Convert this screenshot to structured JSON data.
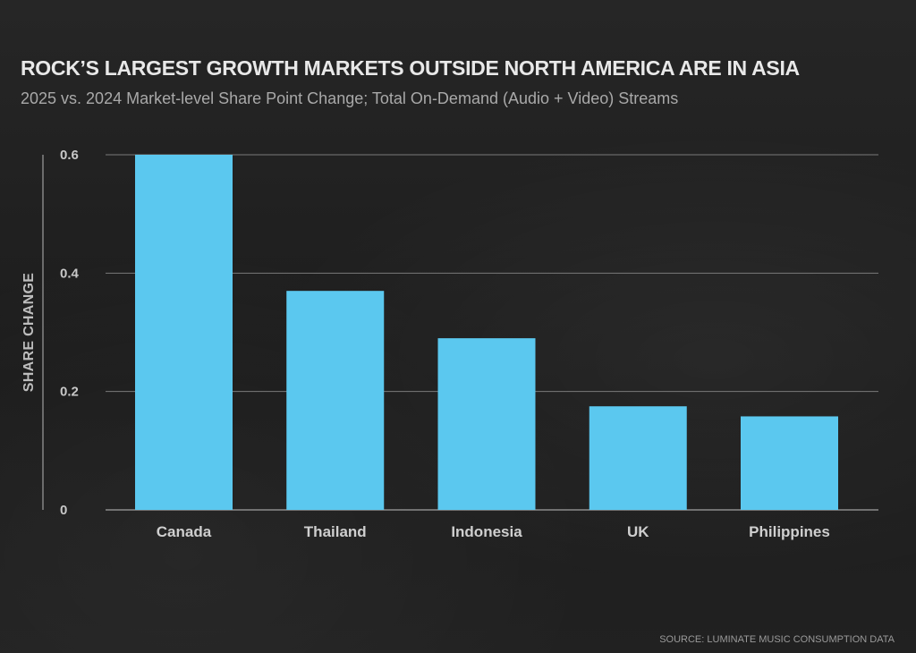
{
  "colors": {
    "bar": "#5bc8ef",
    "grid": "#7a7a7a",
    "axis": "#8c8c8c"
  },
  "source": "SOURCE: LUMINATE MUSIC CONSUMPTION DATA",
  "chart_data": {
    "type": "bar",
    "title": "ROCK’S LARGEST GROWTH MARKETS OUTSIDE NORTH AMERICA ARE IN ASIA",
    "subtitle": "2025 vs. 2024 Market-level Share Point Change; Total On-Demand (Audio + Video) Streams",
    "categories": [
      "Canada",
      "Thailand",
      "Indonesia",
      "UK",
      "Philippines"
    ],
    "values": [
      0.6,
      0.37,
      0.29,
      0.175,
      0.158
    ],
    "xlabel": "",
    "ylabel": "SHARE CHANGE",
    "ylim": [
      0,
      0.6
    ],
    "yticks": [
      0,
      0.2,
      0.4,
      0.6
    ],
    "ytick_labels": [
      "0",
      "0.2",
      "0.4",
      "0.6"
    ],
    "grid": true
  }
}
